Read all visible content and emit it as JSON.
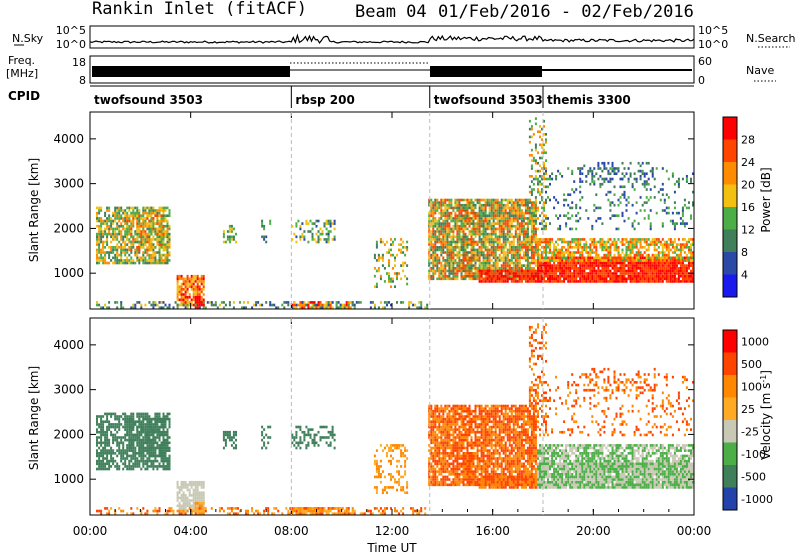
{
  "header": {
    "station": "Rankin Inlet (fitACF)",
    "beam": "Beam 04",
    "date_range": "01/Feb/2016 - 02/Feb/2016"
  },
  "colors": {
    "power": [
      "#1a1aee",
      "#2b4aa8",
      "#3f7f5a",
      "#4cae46",
      "#f2c011",
      "#ff8c00",
      "#ff4500",
      "#ff0000"
    ],
    "velocity": [
      "#2244aa",
      "#3f7f5a",
      "#4cae46",
      "#c8c8b4",
      "#ffaa22",
      "#ff8800",
      "#ff4400",
      "#ff0000"
    ]
  },
  "chart_data": [
    {
      "id": "nsky",
      "type": "line",
      "ylabel": "N.Sky",
      "ylabel_right": "N.Search",
      "yticks": [
        "10^5",
        "10^0"
      ],
      "yticks_right": [
        "10^5",
        "10^0"
      ]
    },
    {
      "id": "freq",
      "type": "line",
      "ylabel": "Freq.",
      "yunit": "[MHz]",
      "ylabel_right": "Nave",
      "yticks": [
        "18",
        "8"
      ],
      "yticks_right": [
        "60",
        "0"
      ]
    },
    {
      "id": "cpid",
      "type": "table",
      "label": "CPID",
      "segments": [
        {
          "name": "twofsound 3503",
          "start_h": 0,
          "end_h": 8
        },
        {
          "name": "rbsp 200",
          "start_h": 8,
          "end_h": 13.5
        },
        {
          "name": "twofsound 3503",
          "start_h": 13.5,
          "end_h": 18
        },
        {
          "name": "themis 3300",
          "start_h": 18,
          "end_h": 24
        }
      ]
    },
    {
      "id": "power",
      "type": "heatmap",
      "ylabel": "Slant Range [km]",
      "ylim": [
        200,
        4600
      ],
      "yticks": [
        1000,
        2000,
        3000,
        4000
      ],
      "colorbar_label": "Power [dB]",
      "colorbar_ticks": [
        4,
        8,
        12,
        16,
        20,
        24,
        28
      ]
    },
    {
      "id": "velocity",
      "type": "heatmap",
      "ylabel": "Slant Range [km]",
      "xlabel": "Time UT",
      "ylim": [
        200,
        4600
      ],
      "yticks": [
        1000,
        2000,
        3000,
        4000
      ],
      "colorbar_label": "Velocity [m s^-1]",
      "colorbar_ticks": [
        "1000",
        "500",
        "100",
        "25",
        "-25",
        "-100",
        "-500",
        "-1000"
      ]
    }
  ],
  "xaxis": {
    "label": "Time UT",
    "range_h": [
      0,
      24
    ],
    "ticks": [
      "00:00",
      "04:00",
      "08:00",
      "12:00",
      "16:00",
      "20:00",
      "00:00"
    ]
  }
}
